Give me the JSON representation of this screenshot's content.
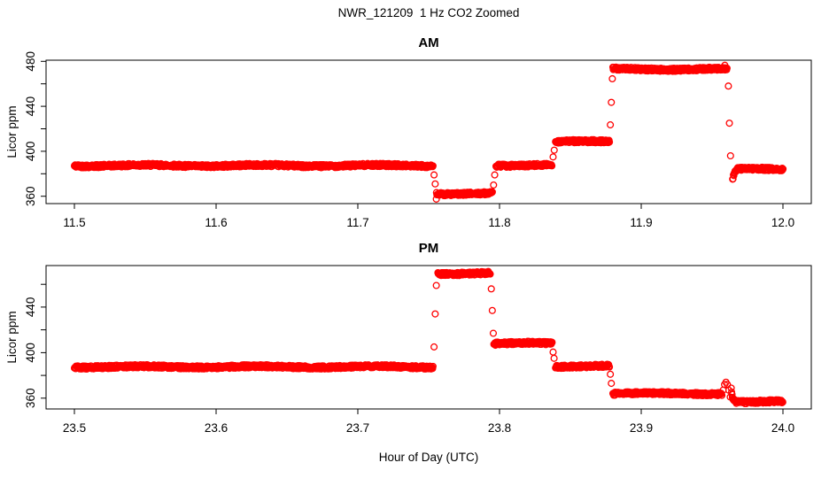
{
  "title": "NWR_121209  1 Hz CO2 Zoomed",
  "xlabel": "Hour of Day (UTC)",
  "ylabel": "Licor ppm",
  "colors": {
    "points": "#ff0000",
    "axis": "#000000",
    "text": "#000000",
    "background": "#ffffff"
  },
  "chart_data": [
    {
      "type": "scatter",
      "title": "AM",
      "marker": "open-circle",
      "sample_rate_hz": 1,
      "xlim": [
        11.48,
        12.02
      ],
      "ylim": [
        353.5,
        481.0
      ],
      "x_ticks": [
        11.5,
        11.6,
        11.7,
        11.8,
        11.9,
        12.0
      ],
      "x_tick_labels": [
        "11.5",
        "11.6",
        "11.7",
        "11.8",
        "11.9",
        "12.0"
      ],
      "y_ticks_labeled": [
        360,
        400,
        440,
        480
      ],
      "y_ticks_minor": [
        380,
        420,
        460
      ],
      "grid": false,
      "segments": [
        {
          "start": 11.5,
          "end": 11.753,
          "level": 387.3
        },
        {
          "start": 11.7555,
          "end": 11.795,
          "level": 362.4
        },
        {
          "start": 11.7975,
          "end": 11.837,
          "level": 387.6
        },
        {
          "start": 11.8395,
          "end": 11.8775,
          "level": 408.5
        },
        {
          "start": 11.88,
          "end": 11.9605,
          "level": 473.0
        },
        {
          "start": 11.9645,
          "end": 12.0,
          "level": 384.0,
          "approach_from": 374.0
        }
      ],
      "transition_points": [
        {
          "x": 11.7538,
          "y": 379.0
        },
        {
          "x": 11.7546,
          "y": 371.0
        },
        {
          "x": 11.7554,
          "y": 357.5
        },
        {
          "x": 11.7958,
          "y": 370.0
        },
        {
          "x": 11.7966,
          "y": 379.0
        },
        {
          "x": 11.8378,
          "y": 395.0
        },
        {
          "x": 11.8386,
          "y": 401.0
        },
        {
          "x": 11.8782,
          "y": 423.5
        },
        {
          "x": 11.8789,
          "y": 443.5
        },
        {
          "x": 11.8796,
          "y": 464.5
        },
        {
          "x": 11.959,
          "y": 476.5
        },
        {
          "x": 11.9615,
          "y": 458.0
        },
        {
          "x": 11.9622,
          "y": 425.0
        },
        {
          "x": 11.963,
          "y": 396.0
        }
      ]
    },
    {
      "type": "scatter",
      "title": "PM",
      "marker": "open-circle",
      "sample_rate_hz": 1,
      "xlim": [
        23.48,
        24.02
      ],
      "ylim": [
        350.5,
        476.5
      ],
      "x_ticks": [
        23.5,
        23.6,
        23.7,
        23.8,
        23.9,
        24.0
      ],
      "x_tick_labels": [
        "23.5",
        "23.6",
        "23.7",
        "23.8",
        "23.9",
        "24.0"
      ],
      "y_ticks_labeled": [
        360,
        400,
        440
      ],
      "y_ticks_minor": [
        380,
        420,
        460
      ],
      "grid": false,
      "segments": [
        {
          "start": 23.5,
          "end": 23.753,
          "level": 387.5
        },
        {
          "start": 23.7565,
          "end": 23.7935,
          "level": 469.5
        },
        {
          "start": 23.796,
          "end": 23.837,
          "level": 408.0
        },
        {
          "start": 23.8395,
          "end": 23.8775,
          "level": 388.0
        },
        {
          "start": 23.88,
          "end": 23.957,
          "level": 364.0
        },
        {
          "start": 23.9635,
          "end": 24.0,
          "level": 356.8,
          "approach_from": 368.0
        }
      ],
      "transition_points": [
        {
          "x": 23.7538,
          "y": 405.0
        },
        {
          "x": 23.7546,
          "y": 434.0
        },
        {
          "x": 23.7554,
          "y": 459.0
        },
        {
          "x": 23.7942,
          "y": 456.0
        },
        {
          "x": 23.7949,
          "y": 437.0
        },
        {
          "x": 23.7956,
          "y": 417.0
        },
        {
          "x": 23.8378,
          "y": 400.5
        },
        {
          "x": 23.8385,
          "y": 395.0
        },
        {
          "x": 23.8782,
          "y": 381.0
        },
        {
          "x": 23.8789,
          "y": 373.0
        },
        {
          "x": 23.9578,
          "y": 367.0
        },
        {
          "x": 23.9588,
          "y": 372.0
        },
        {
          "x": 23.9598,
          "y": 374.0
        },
        {
          "x": 23.9608,
          "y": 372.0
        },
        {
          "x": 23.9618,
          "y": 367.0
        },
        {
          "x": 23.9628,
          "y": 361.0
        }
      ]
    }
  ]
}
